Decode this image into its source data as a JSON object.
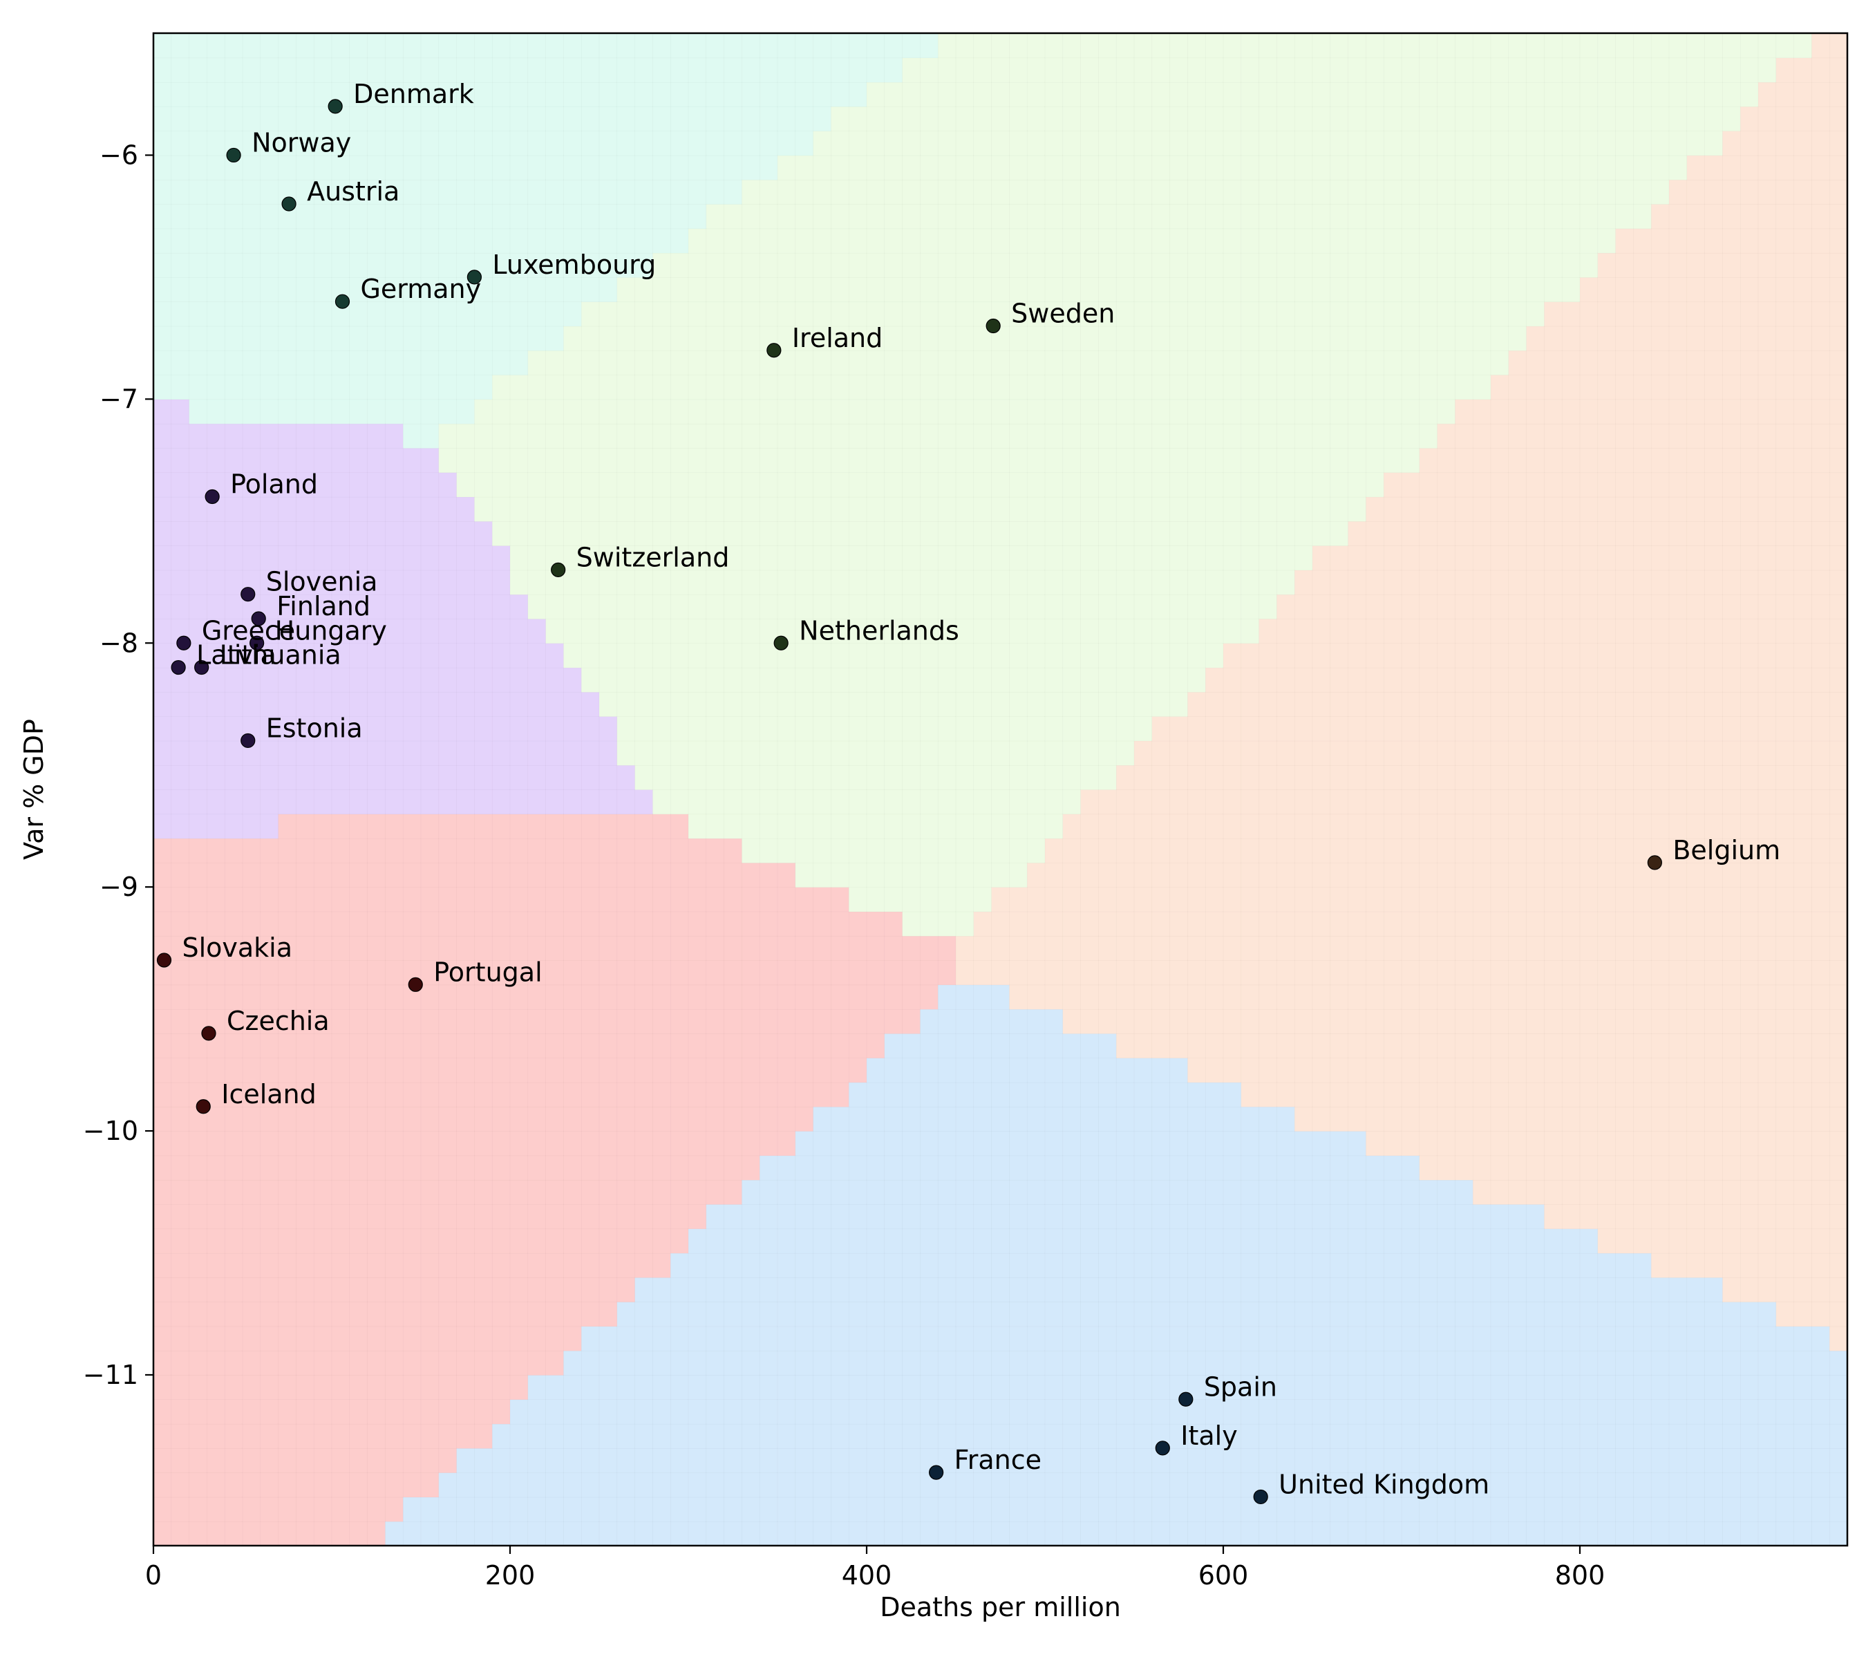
{
  "chart_data": {
    "type": "scatter",
    "title": "",
    "xlabel": "Deaths per million",
    "ylabel": "Var % GDP",
    "xlim": [
      0,
      950
    ],
    "ylim": [
      -11.7,
      -5.5
    ],
    "xticks": [
      {
        "value": 0,
        "label": "0"
      },
      {
        "value": 200,
        "label": "200"
      },
      {
        "value": 400,
        "label": "400"
      },
      {
        "value": 600,
        "label": "600"
      },
      {
        "value": 800,
        "label": "800"
      }
    ],
    "yticks": [
      {
        "value": -6,
        "label": "−6"
      },
      {
        "value": -7,
        "label": "−7"
      },
      {
        "value": -8,
        "label": "−8"
      },
      {
        "value": -9,
        "label": "−9"
      },
      {
        "value": -10,
        "label": "−10"
      },
      {
        "value": -11,
        "label": "−11"
      }
    ],
    "clusters": [
      {
        "id": 0,
        "color": "#dffaf2",
        "point_color": "#163a30"
      },
      {
        "id": 1,
        "color": "#e4d3fb",
        "point_color": "#22123a"
      },
      {
        "id": 2,
        "color": "#fdcdcc",
        "point_color": "#3a0a0a"
      },
      {
        "id": 3,
        "color": "#d4e9fb",
        "point_color": "#0c2236"
      },
      {
        "id": 4,
        "color": "#fde6d8",
        "point_color": "#3a2414"
      },
      {
        "id": 5,
        "color": "#edfbe4",
        "point_color": "#1f3318"
      }
    ],
    "points": [
      {
        "name": "Denmark",
        "x": 102,
        "y": -5.8,
        "cluster": 0
      },
      {
        "name": "Norway",
        "x": 45,
        "y": -6.0,
        "cluster": 0
      },
      {
        "name": "Austria",
        "x": 76,
        "y": -6.2,
        "cluster": 0
      },
      {
        "name": "Luxembourg",
        "x": 180,
        "y": -6.5,
        "cluster": 0
      },
      {
        "name": "Germany",
        "x": 106,
        "y": -6.6,
        "cluster": 0
      },
      {
        "name": "Ireland",
        "x": 348,
        "y": -6.8,
        "cluster": 5
      },
      {
        "name": "Sweden",
        "x": 471,
        "y": -6.7,
        "cluster": 5
      },
      {
        "name": "Poland",
        "x": 33,
        "y": -7.4,
        "cluster": 1
      },
      {
        "name": "Switzerland",
        "x": 227,
        "y": -7.7,
        "cluster": 5
      },
      {
        "name": "Slovenia",
        "x": 53,
        "y": -7.8,
        "cluster": 1
      },
      {
        "name": "Finland",
        "x": 59,
        "y": -7.9,
        "cluster": 1
      },
      {
        "name": "Hungary",
        "x": 58,
        "y": -8.0,
        "cluster": 1
      },
      {
        "name": "Greece",
        "x": 17,
        "y": -8.0,
        "cluster": 1
      },
      {
        "name": "Netherlands",
        "x": 352,
        "y": -8.0,
        "cluster": 5
      },
      {
        "name": "Latvia",
        "x": 14,
        "y": -8.1,
        "cluster": 1
      },
      {
        "name": "Lithuania",
        "x": 27,
        "y": -8.1,
        "cluster": 1
      },
      {
        "name": "Estonia",
        "x": 53,
        "y": -8.4,
        "cluster": 1
      },
      {
        "name": "Belgium",
        "x": 842,
        "y": -8.9,
        "cluster": 4
      },
      {
        "name": "Slovakia",
        "x": 6,
        "y": -9.3,
        "cluster": 2
      },
      {
        "name": "Portugal",
        "x": 147,
        "y": -9.4,
        "cluster": 2
      },
      {
        "name": "Czechia",
        "x": 31,
        "y": -9.6,
        "cluster": 2
      },
      {
        "name": "Iceland",
        "x": 28,
        "y": -9.9,
        "cluster": 2
      },
      {
        "name": "Spain",
        "x": 579,
        "y": -11.1,
        "cluster": 3
      },
      {
        "name": "Italy",
        "x": 566,
        "y": -11.3,
        "cluster": 3
      },
      {
        "name": "France",
        "x": 439,
        "y": -11.4,
        "cluster": 3
      },
      {
        "name": "United Kingdom",
        "x": 621,
        "y": -11.5,
        "cluster": 3
      }
    ]
  }
}
